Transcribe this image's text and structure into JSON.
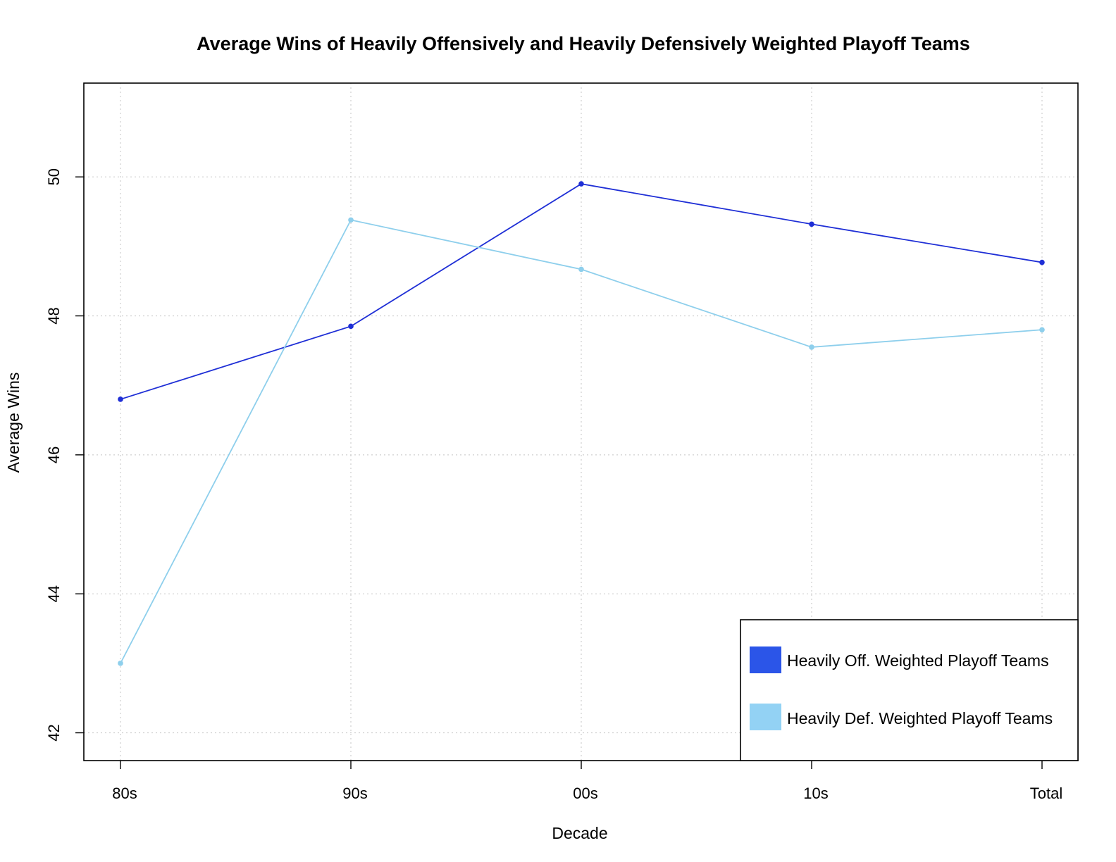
{
  "chart_data": {
    "type": "line",
    "title": "Average Wins of Heavily Offensively and Heavily Defensively Weighted Playoff Teams",
    "xlabel": "Decade",
    "ylabel": "Average Wins",
    "categories": [
      "80s",
      "90s",
      "00s",
      "10s",
      "Total"
    ],
    "yticks": [
      42,
      44,
      46,
      48,
      50
    ],
    "ylim": [
      41.6,
      51.35
    ],
    "grid": true,
    "legend_position": "bottom-right",
    "series": [
      {
        "name": "Heavily Off. Weighted Playoff Teams",
        "color": "#1f2fd6",
        "legend_color": "#2b55e8",
        "values": [
          46.8,
          47.85,
          49.9,
          49.32,
          48.77
        ]
      },
      {
        "name": "Heavily Def. Weighted Playoff Teams",
        "color": "#8ecfec",
        "legend_color": "#93d2f4",
        "values": [
          43.0,
          49.38,
          48.67,
          47.55,
          47.8
        ]
      }
    ]
  }
}
